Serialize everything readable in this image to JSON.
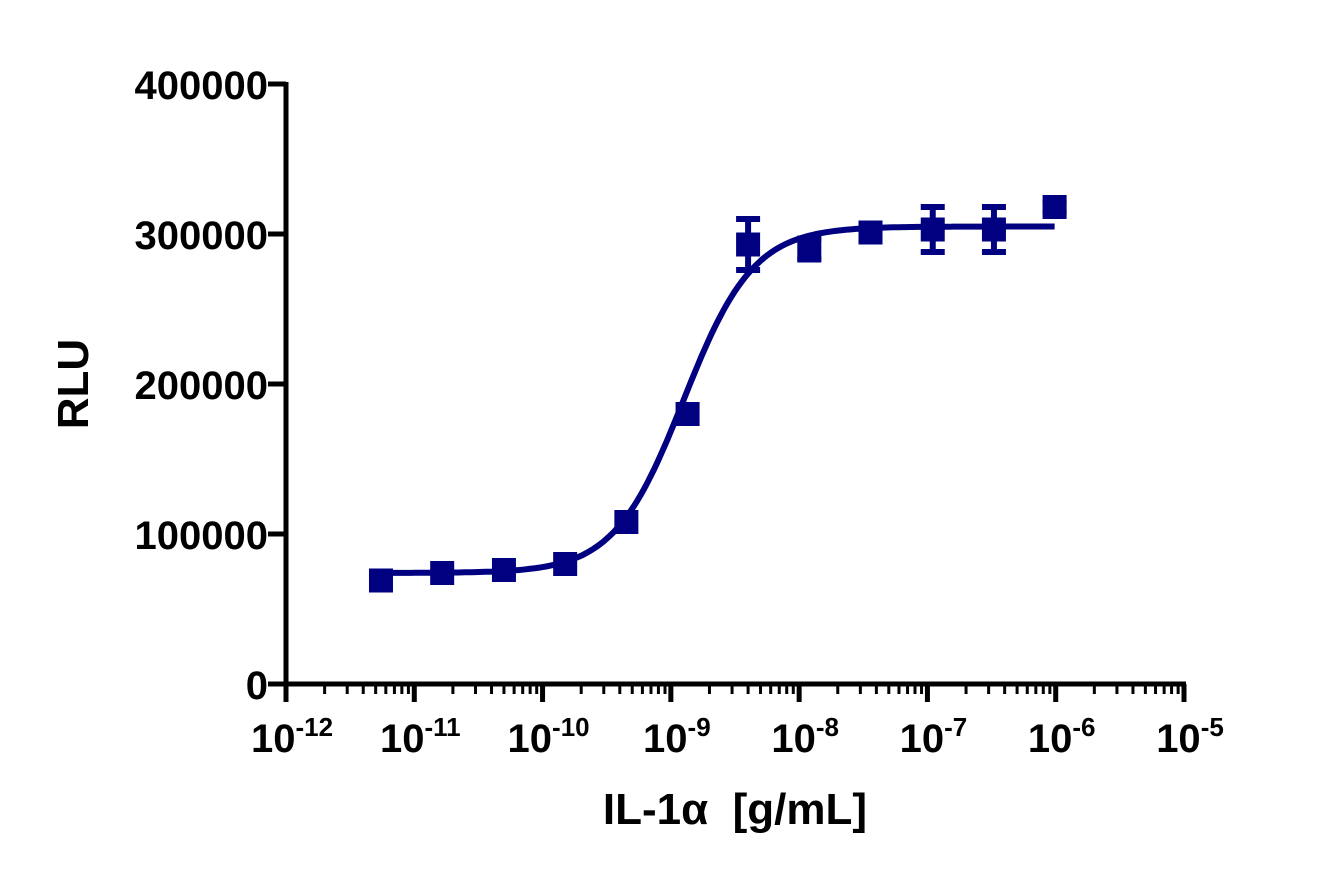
{
  "chart_data": {
    "type": "scatter",
    "title": "",
    "xlabel": "IL-1α  [g/mL]",
    "ylabel": "RLU",
    "x_scale": "log",
    "xlim_log10": [
      -12,
      -5
    ],
    "ylim": [
      0,
      400000
    ],
    "y_ticks": [
      0,
      100000,
      200000,
      300000,
      400000
    ],
    "y_tick_labels": [
      "0",
      "100000",
      "200000",
      "300000",
      "400000"
    ],
    "x_ticks_log10": [
      -12,
      -11,
      -10,
      -9,
      -8,
      -7,
      -6,
      -5
    ],
    "x_tick_labels": [
      {
        "base": "10",
        "exp": "-12"
      },
      {
        "base": "10",
        "exp": "-11"
      },
      {
        "base": "10",
        "exp": "-10"
      },
      {
        "base": "10",
        "exp": "-9"
      },
      {
        "base": "10",
        "exp": "-8"
      },
      {
        "base": "10",
        "exp": "-7"
      },
      {
        "base": "10",
        "exp": "-6"
      },
      {
        "base": "10",
        "exp": "-5"
      }
    ],
    "grid": false,
    "legend": null,
    "series": [
      {
        "name": "IL-1α",
        "color": "#000080",
        "marker": "square",
        "points": [
          {
            "x": 5.5e-12,
            "y": 69000,
            "err": 0
          },
          {
            "x": 1.65e-11,
            "y": 74000,
            "err": 0
          },
          {
            "x": 5e-11,
            "y": 76000,
            "err": 0
          },
          {
            "x": 1.5e-10,
            "y": 80000,
            "err": 0
          },
          {
            "x": 4.5e-10,
            "y": 108000,
            "err": 0
          },
          {
            "x": 1.35e-09,
            "y": 180000,
            "err": 0
          },
          {
            "x": 4e-09,
            "y": 293000,
            "err": 17000
          },
          {
            "x": 1.2e-08,
            "y": 290000,
            "err": 7000
          },
          {
            "x": 3.6e-08,
            "y": 301000,
            "err": 4000
          },
          {
            "x": 1.1e-07,
            "y": 303000,
            "err": 15000
          },
          {
            "x": 3.3e-07,
            "y": 303000,
            "err": 15000
          },
          {
            "x": 9.8e-07,
            "y": 318000,
            "err": 3000
          }
        ],
        "fit": {
          "model": "4PL sigmoid",
          "bottom": 74000,
          "top": 305000,
          "log_ec50": -8.9,
          "hill": 1.6
        }
      }
    ]
  }
}
